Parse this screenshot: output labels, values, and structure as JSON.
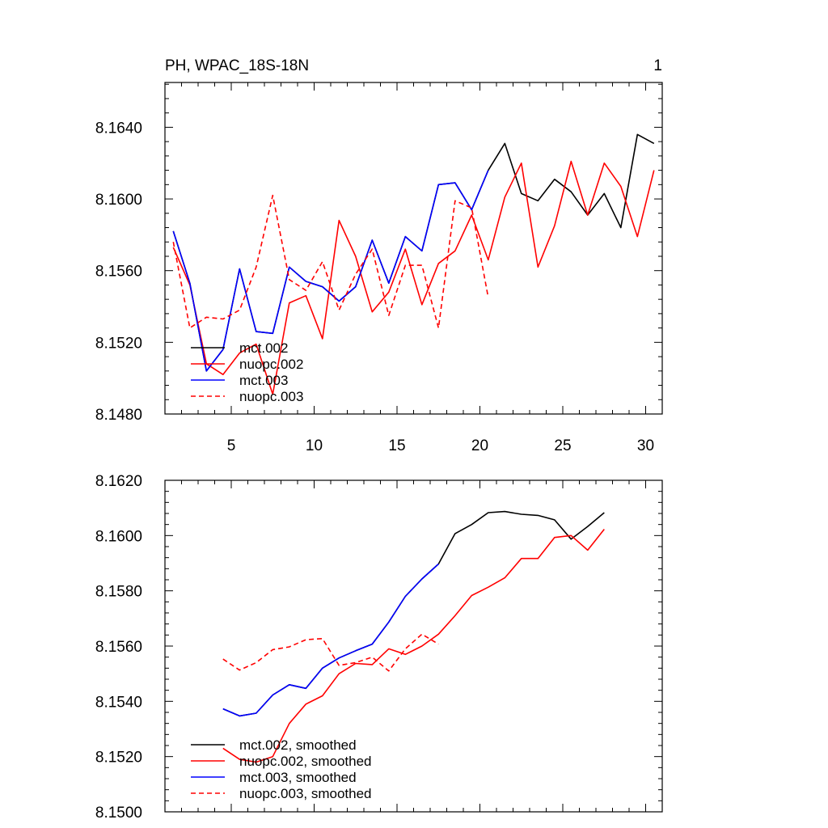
{
  "chart_data": [
    {
      "type": "line",
      "title_left": "PH, WPAC_18S-18N",
      "title_right": "1",
      "xlim": [
        1,
        31
      ],
      "ylim": [
        8.148,
        8.1665
      ],
      "xticks": [
        5,
        10,
        15,
        20,
        25,
        30
      ],
      "xtick_labels": [
        "5",
        "10",
        "15",
        "20",
        "25",
        "30"
      ],
      "yticks": [
        8.148,
        8.152,
        8.156,
        8.16,
        8.164
      ],
      "ytick_labels": [
        "8.1480",
        "8.1520",
        "8.1560",
        "8.1600",
        "8.1640"
      ],
      "series": [
        {
          "name": "mct.002",
          "color": "#000000",
          "dash": "solid",
          "x": [
            1.5,
            2.5,
            3.5,
            4.5,
            5.5,
            6.5,
            7.5,
            8.5,
            9.5,
            10.5,
            11.5,
            12.5,
            13.5,
            14.5,
            15.5,
            16.5,
            17.5,
            18.5,
            19.5,
            20.5,
            21.5,
            22.5,
            23.5,
            24.5,
            25.5,
            26.5,
            27.5,
            28.5,
            29.5,
            30.5
          ],
          "values": [
            8.1582,
            8.1553,
            8.1504,
            8.1516,
            8.1561,
            8.1526,
            8.1525,
            8.1562,
            8.1554,
            8.1551,
            8.1543,
            8.1551,
            8.1577,
            8.1553,
            8.1579,
            8.1571,
            8.1608,
            8.1609,
            8.1594,
            8.1616,
            8.1631,
            8.1603,
            8.1599,
            8.1611,
            8.1604,
            8.1591,
            8.1603,
            8.1584,
            8.1636,
            8.1631
          ]
        },
        {
          "name": "nuopc.002",
          "color": "#ff0000",
          "dash": "solid",
          "x": [
            1.5,
            2.5,
            3.5,
            4.5,
            5.5,
            6.5,
            7.5,
            8.5,
            9.5,
            10.5,
            11.5,
            12.5,
            13.5,
            14.5,
            15.5,
            16.5,
            17.5,
            18.5,
            19.5,
            20.5,
            21.5,
            22.5,
            23.5,
            24.5,
            25.5,
            26.5,
            27.5,
            28.5,
            29.5,
            30.5
          ],
          "values": [
            8.1573,
            8.1552,
            8.1508,
            8.1502,
            8.1514,
            8.1519,
            8.1491,
            8.1542,
            8.1546,
            8.1522,
            8.1588,
            8.1568,
            8.1537,
            8.1548,
            8.1572,
            8.1541,
            8.1564,
            8.1571,
            8.1591,
            8.1566,
            8.1601,
            8.162,
            8.1562,
            8.1585,
            8.1621,
            8.1591,
            8.162,
            8.1607,
            8.1579,
            8.1616
          ]
        },
        {
          "name": "mct.003",
          "color": "#0000ff",
          "dash": "solid",
          "x": [
            1.5,
            2.5,
            3.5,
            4.5,
            5.5,
            6.5,
            7.5,
            8.5,
            9.5,
            10.5,
            11.5,
            12.5,
            13.5,
            14.5,
            15.5,
            16.5,
            17.5,
            18.5,
            19.5,
            20.5
          ],
          "values": [
            8.1582,
            8.1553,
            8.1504,
            8.1516,
            8.1561,
            8.1526,
            8.1525,
            8.1562,
            8.1554,
            8.1551,
            8.1543,
            8.1551,
            8.1577,
            8.1553,
            8.1579,
            8.1571,
            8.1608,
            8.1609,
            8.1594,
            8.1616
          ]
        },
        {
          "name": "nuopc.003",
          "color": "#ff0000",
          "dash": "dashed",
          "x": [
            1.5,
            2.5,
            3.5,
            4.5,
            5.5,
            6.5,
            7.5,
            8.5,
            9.5,
            10.5,
            11.5,
            12.5,
            13.5,
            14.5,
            15.5,
            16.5,
            17.5,
            18.5,
            19.5,
            20.5
          ],
          "values": [
            8.1576,
            8.1528,
            8.1534,
            8.1533,
            8.1538,
            8.1562,
            8.1602,
            8.1555,
            8.1549,
            8.1565,
            8.1538,
            8.1558,
            8.1572,
            8.1535,
            8.1563,
            8.1563,
            8.1528,
            8.1599,
            8.1595,
            8.1545
          ]
        }
      ]
    },
    {
      "type": "line",
      "xlim": [
        1,
        31
      ],
      "ylim": [
        8.15,
        8.162
      ],
      "xticks": [
        5,
        10,
        15,
        20,
        25,
        30
      ],
      "yticks": [
        8.15,
        8.152,
        8.154,
        8.156,
        8.158,
        8.16,
        8.162
      ],
      "ytick_labels": [
        "8.1500",
        "8.1520",
        "8.1540",
        "8.1560",
        "8.1580",
        "8.1600",
        "8.1620"
      ],
      "series": [
        {
          "name": "mct.002, smoothed",
          "color": "#000000",
          "dash": "solid",
          "x": [
            4.5,
            5.5,
            6.5,
            7.5,
            8.5,
            9.5,
            10.5,
            11.5,
            12.5,
            13.5,
            14.5,
            15.5,
            16.5,
            17.5,
            18.5,
            19.5,
            20.5,
            21.5,
            22.5,
            23.5,
            24.5,
            25.5,
            26.5,
            27.5
          ],
          "values": [
            8.15373,
            8.15347,
            8.15357,
            8.15423,
            8.1546,
            8.15447,
            8.1552,
            8.15557,
            8.15583,
            8.15607,
            8.15687,
            8.1578,
            8.15843,
            8.15897,
            8.16007,
            8.1604,
            8.16083,
            8.16087,
            8.16077,
            8.16073,
            8.16057,
            8.15987,
            8.16033,
            8.16083
          ]
        },
        {
          "name": "nuopc.002, smoothed",
          "color": "#ff0000",
          "dash": "solid",
          "x": [
            4.5,
            5.5,
            6.5,
            7.5,
            8.5,
            9.5,
            10.5,
            11.5,
            12.5,
            13.5,
            14.5,
            15.5,
            16.5,
            17.5,
            18.5,
            19.5,
            20.5,
            21.5,
            22.5,
            23.5,
            24.5,
            25.5,
            26.5,
            27.5
          ],
          "values": [
            8.1523,
            8.1519,
            8.1518,
            8.152,
            8.1532,
            8.1539,
            8.1542,
            8.155,
            8.15537,
            8.15533,
            8.1559,
            8.1557,
            8.156,
            8.15643,
            8.1571,
            8.15783,
            8.15813,
            8.15847,
            8.15917,
            8.15917,
            8.15993,
            8.16,
            8.15947,
            8.16023
          ]
        },
        {
          "name": "mct.003, smoothed",
          "color": "#0000ff",
          "dash": "solid",
          "x": [
            4.5,
            5.5,
            6.5,
            7.5,
            8.5,
            9.5,
            10.5,
            11.5,
            12.5,
            13.5,
            14.5,
            15.5,
            16.5,
            17.5
          ],
          "values": [
            8.15373,
            8.15347,
            8.15357,
            8.15423,
            8.1546,
            8.15447,
            8.1552,
            8.15557,
            8.15583,
            8.15607,
            8.15687,
            8.1578,
            8.15843,
            8.15897
          ]
        },
        {
          "name": "nuopc.003, smoothed",
          "color": "#ff0000",
          "dash": "dashed",
          "x": [
            4.5,
            5.5,
            6.5,
            7.5,
            8.5,
            9.5,
            10.5,
            11.5,
            12.5,
            13.5,
            14.5,
            15.5,
            16.5,
            17.5
          ],
          "values": [
            8.15553,
            8.15513,
            8.1554,
            8.15587,
            8.15597,
            8.15623,
            8.15627,
            8.1553,
            8.1554,
            8.1556,
            8.1551,
            8.1559,
            8.15643,
            8.15607
          ]
        }
      ]
    }
  ]
}
